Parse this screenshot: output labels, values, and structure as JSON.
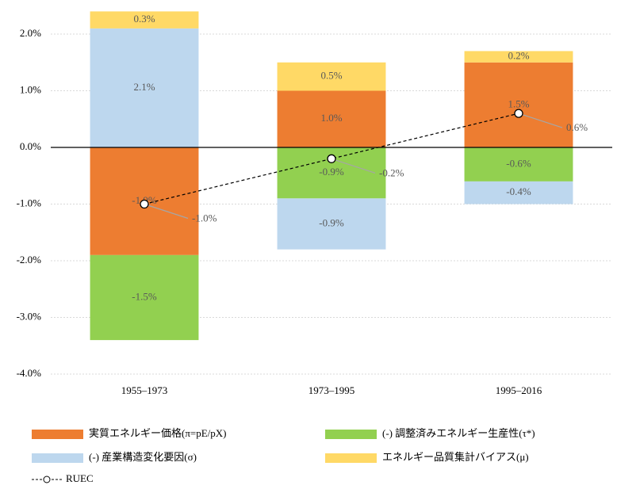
{
  "chart_data": {
    "type": "bar",
    "categories": [
      "1955–1973",
      "1973–1995",
      "1995–2016"
    ],
    "series": [
      {
        "name": "実質エネルギー価格(π=pE/pX)",
        "color": "#ed7d31",
        "values": [
          -1.9,
          1.0,
          1.5
        ],
        "value_labels": [
          "-1.9%",
          "1.0%",
          "1.5%"
        ]
      },
      {
        "name": "(-) 調整済みエネルギー生産性(τ*)",
        "color": "#92d050",
        "values": [
          -1.5,
          -0.9,
          -0.6
        ],
        "value_labels": [
          "-1.5%",
          "-0.9%",
          "-0.6%"
        ]
      },
      {
        "name": "(-) 産業構造変化要因(σ)",
        "color": "#bdd7ee",
        "values": [
          2.1,
          -0.9,
          -0.4
        ],
        "value_labels": [
          "2.1%",
          "-0.9%",
          "-0.4%"
        ]
      },
      {
        "name": "エネルギー品質集計バイアス(μ)",
        "color": "#ffd966",
        "values": [
          0.3,
          0.5,
          0.2
        ],
        "value_labels": [
          "0.3%",
          "0.5%",
          "0.2%"
        ]
      },
      {
        "name": "RUEC",
        "type": "line",
        "color": "#000000",
        "values": [
          -1.0,
          -0.2,
          0.6
        ],
        "value_labels": [
          "-1.0%",
          "-0.2%",
          "0.6%"
        ]
      }
    ],
    "ylim": [
      -4,
      2.5
    ],
    "yticks": [
      {
        "value": -4,
        "label": "-4.0%"
      },
      {
        "value": -3,
        "label": "-3.0%"
      },
      {
        "value": -2,
        "label": "-2.0%"
      },
      {
        "value": -1,
        "label": "-1.0%"
      },
      {
        "value": 0,
        "label": "0.0%"
      },
      {
        "value": 1,
        "label": "1.0%"
      },
      {
        "value": 2,
        "label": "2.0%"
      }
    ],
    "grid": true
  }
}
